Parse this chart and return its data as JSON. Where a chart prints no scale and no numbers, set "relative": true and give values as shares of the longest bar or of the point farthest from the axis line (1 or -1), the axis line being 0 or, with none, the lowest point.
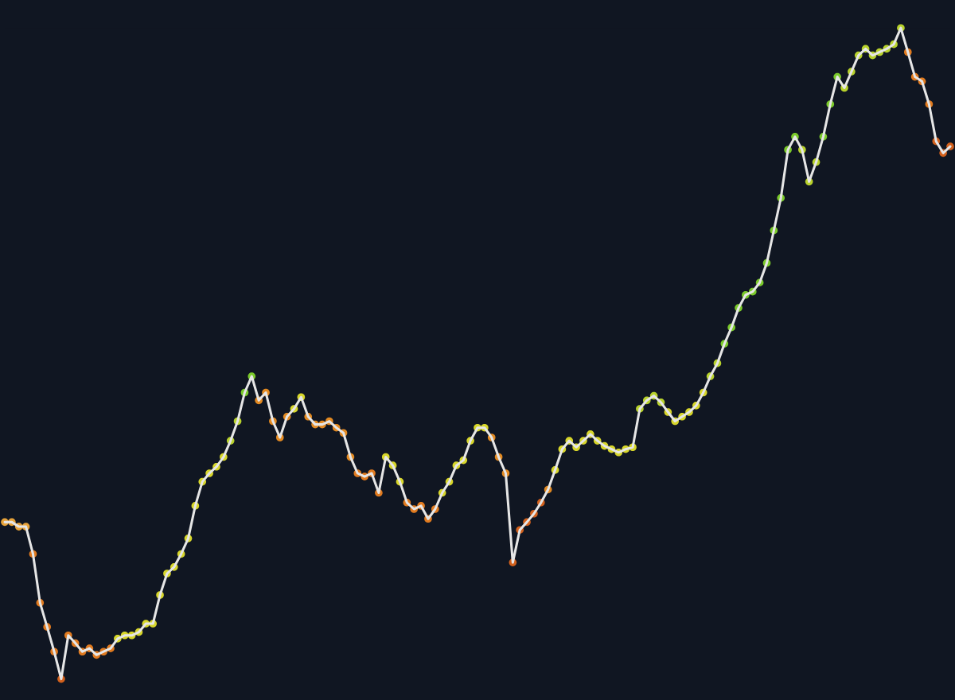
{
  "chart_data": {
    "type": "line",
    "relative": true,
    "marker": "circle",
    "categories": [
      null,
      null,
      null,
      null,
      null,
      null,
      null,
      null,
      null,
      null,
      null,
      null,
      null,
      null,
      null,
      null,
      null,
      null,
      null,
      null,
      null,
      null,
      null,
      null,
      null,
      null,
      null,
      null,
      null,
      null,
      null,
      null,
      null,
      null,
      null,
      null,
      null,
      null,
      null,
      null,
      null,
      null,
      null,
      null,
      null,
      null,
      null,
      null,
      null,
      null,
      null,
      null,
      null,
      null,
      null,
      null,
      null,
      null,
      null,
      null,
      null,
      null,
      null,
      null,
      null,
      null,
      null,
      null,
      null,
      null,
      null,
      null,
      null,
      null,
      null,
      null,
      null,
      null,
      null,
      null,
      null,
      null,
      null,
      null,
      null,
      null,
      null,
      null,
      null,
      null,
      null,
      null,
      null,
      null,
      null,
      null,
      null,
      null,
      null,
      null,
      null,
      null,
      null,
      null,
      null,
      null,
      null,
      null,
      null,
      null,
      null,
      null,
      null,
      null,
      null,
      null,
      null,
      null,
      null,
      null,
      null,
      null,
      null,
      null,
      null,
      null,
      null,
      null,
      null,
      null,
      null,
      null,
      null,
      null,
      null
    ],
    "series": [
      {
        "color": "#e6e6e6",
        "values": [
          0.241,
          0.241,
          0.234,
          0.234,
          0.192,
          0.117,
          0.08,
          0.042,
          0,
          0.067,
          0.055,
          0.042,
          0.047,
          0.037,
          0.042,
          0.047,
          0.062,
          0.067,
          0.067,
          0.072,
          0.085,
          0.085,
          0.129,
          0.162,
          0.172,
          0.192,
          0.216,
          0.266,
          0.303,
          0.316,
          0.326,
          0.341,
          0.366,
          0.396,
          0.44,
          0.465,
          0.428,
          0.44,
          0.396,
          0.371,
          0.403,
          0.415,
          0.433,
          0.403,
          0.391,
          0.391,
          0.396,
          0.386,
          0.378,
          0.341,
          0.316,
          0.311,
          0.316,
          0.286,
          0.341,
          0.328,
          0.303,
          0.271,
          0.261,
          0.266,
          0.246,
          0.261,
          0.286,
          0.303,
          0.328,
          0.336,
          0.366,
          0.386,
          0.386,
          0.371,
          0.341,
          0.316,
          0.179,
          0.229,
          0.241,
          0.254,
          0.271,
          0.291,
          0.321,
          0.353,
          0.366,
          0.356,
          0.366,
          0.376,
          0.366,
          0.358,
          0.353,
          0.348,
          0.353,
          0.356,
          0.415,
          0.428,
          0.435,
          0.425,
          0.41,
          0.396,
          0.403,
          0.41,
          0.42,
          0.44,
          0.465,
          0.485,
          0.515,
          0.54,
          0.57,
          0.59,
          0.595,
          0.609,
          0.639,
          0.689,
          0.739,
          0.813,
          0.833,
          0.813,
          0.764,
          0.794,
          0.833,
          0.883,
          0.925,
          0.908,
          0.933,
          0.958,
          0.968,
          0.958,
          0.963,
          0.968,
          0.975,
          1,
          0.963,
          0.925,
          0.918,
          0.883,
          0.826,
          0.808,
          0.818
        ],
        "colors": [
          "#e8a33a",
          "#e8a33a",
          "#e8a33a",
          "#e8a33a",
          "#e07a1f",
          "#e07a1f",
          "#e07a1f",
          "#e07a1f",
          "#d2601c",
          "#e07a1f",
          "#e07a1f",
          "#e07a1f",
          "#e07a1f",
          "#e07a1f",
          "#e07a1f",
          "#e07a1f",
          "#d7d62a",
          "#d7d62a",
          "#d7d62a",
          "#d7d62a",
          "#d7d62a",
          "#d7d62a",
          "#d7d62a",
          "#d7d62a",
          "#d7d62a",
          "#d7d62a",
          "#d7d62a",
          "#d7d62a",
          "#d7d62a",
          "#d7d62a",
          "#d7d62a",
          "#d7d62a",
          "#b8d22c",
          "#b8d22c",
          "#7ac92a",
          "#7ac92a",
          "#e38a22",
          "#e38a22",
          "#e38a22",
          "#e38a22",
          "#e38a22",
          "#d7d62a",
          "#d7d62a",
          "#e38a22",
          "#e38a22",
          "#e38a22",
          "#e38a22",
          "#e38a22",
          "#e38a22",
          "#e38a22",
          "#e07a1f",
          "#e07a1f",
          "#e07a1f",
          "#e07a1f",
          "#d7d62a",
          "#d7d62a",
          "#d7d62a",
          "#e07a1f",
          "#e07a1f",
          "#e07a1f",
          "#e07a1f",
          "#e07a1f",
          "#d7d62a",
          "#d7d62a",
          "#d7d62a",
          "#d7d62a",
          "#d7d62a",
          "#d7d62a",
          "#d7d62a",
          "#e38a22",
          "#e38a22",
          "#e38a22",
          "#d2601c",
          "#d2601c",
          "#d2601c",
          "#d2601c",
          "#d2601c",
          "#e38a22",
          "#d7d62a",
          "#d7d62a",
          "#d7d62a",
          "#d7d62a",
          "#d7d62a",
          "#d7d62a",
          "#d7d62a",
          "#d7d62a",
          "#d7d62a",
          "#d7d62a",
          "#d7d62a",
          "#d7d62a",
          "#b8d22c",
          "#b8d22c",
          "#b8d22c",
          "#b8d22c",
          "#d7d62a",
          "#d7d62a",
          "#d7d62a",
          "#d7d62a",
          "#d7d62a",
          "#d7d62a",
          "#b8d22c",
          "#b8d22c",
          "#7ac92a",
          "#7ac92a",
          "#7ac92a",
          "#7ac92a",
          "#7ac92a",
          "#7ac92a",
          "#7ac92a",
          "#7ac92a",
          "#7ac92a",
          "#7ac92a",
          "#7ac92a",
          "#b8d22c",
          "#b8d22c",
          "#b8d22c",
          "#7ac92a",
          "#7ac92a",
          "#7ac92a",
          "#b8d22c",
          "#b8d22c",
          "#b8d22c",
          "#b8d22c",
          "#b8d22c",
          "#b8d22c",
          "#b8d22c",
          "#b8d22c",
          "#b8d22c",
          "#e07a1f",
          "#e07a1f",
          "#e07a1f",
          "#e07a1f",
          "#d2601c",
          "#d2601c",
          "#d2601c"
        ]
      }
    ]
  }
}
